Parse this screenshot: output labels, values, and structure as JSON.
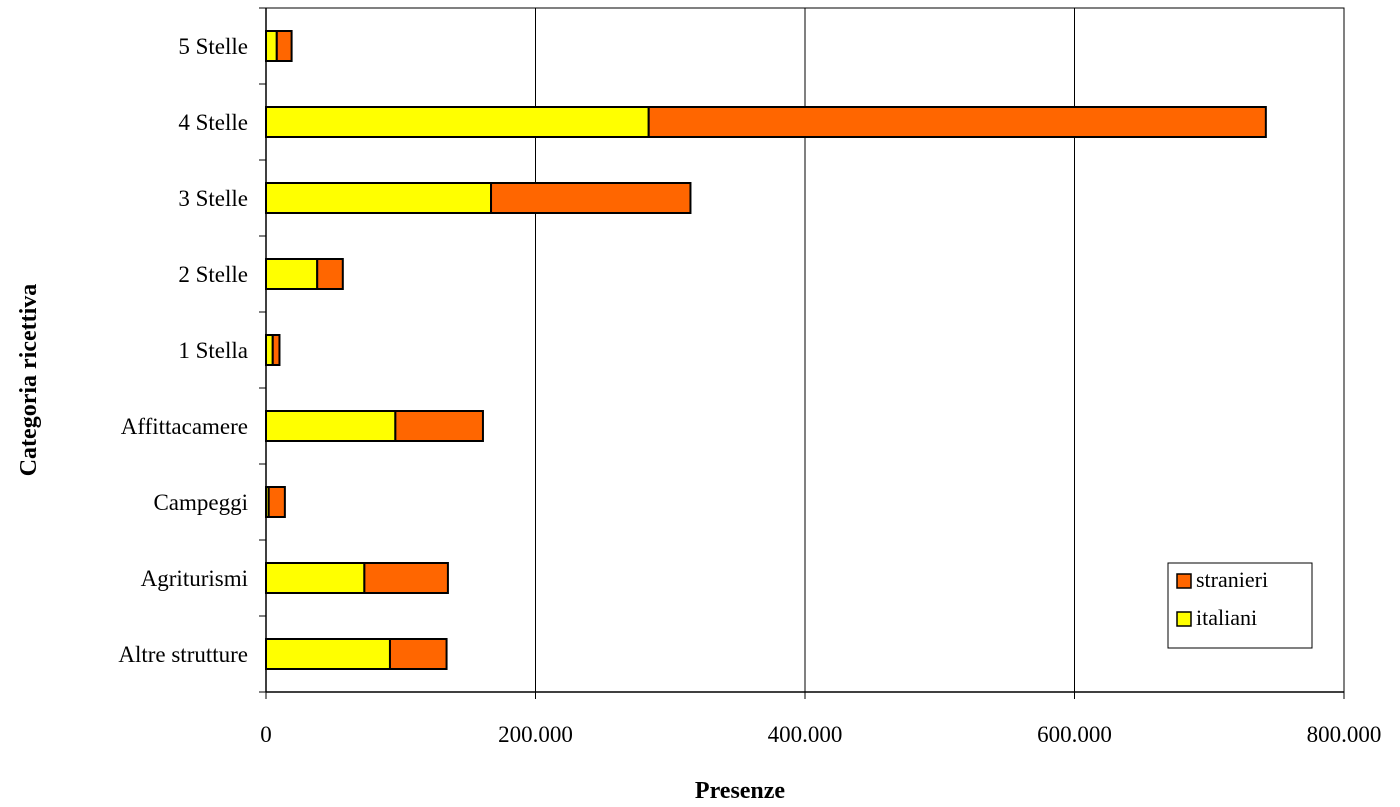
{
  "chart_data": {
    "type": "bar",
    "orientation": "horizontal",
    "stacked": true,
    "categories": [
      "5 Stelle",
      "4 Stelle",
      "3 Stelle",
      "2 Stelle",
      "1 Stella",
      "Affittacamere",
      "Campeggi",
      "Agriturismi",
      "Altre strutture"
    ],
    "series": [
      {
        "name": "italiani",
        "color": "#ffff00",
        "values": [
          8000,
          284000,
          167000,
          38000,
          5000,
          96000,
          2000,
          73000,
          92000
        ]
      },
      {
        "name": "stranieri",
        "color": "#ff6600",
        "values": [
          11000,
          458000,
          148000,
          19000,
          5000,
          65000,
          12000,
          62000,
          42000
        ]
      }
    ],
    "xlabel": "Presenze",
    "ylabel": "Categoria ricettiva",
    "xlim": [
      0,
      800000
    ],
    "xticks": [
      {
        "value": 0,
        "label": "0"
      },
      {
        "value": 200000,
        "label": "200.000"
      },
      {
        "value": 400000,
        "label": "400.000"
      },
      {
        "value": 600000,
        "label": "600.000"
      },
      {
        "value": 800000,
        "label": "800.000"
      }
    ],
    "grid": "vertical major gridlines",
    "legend": {
      "placement": "bottom-right",
      "order": [
        "stranieri",
        "italiani"
      ]
    }
  }
}
